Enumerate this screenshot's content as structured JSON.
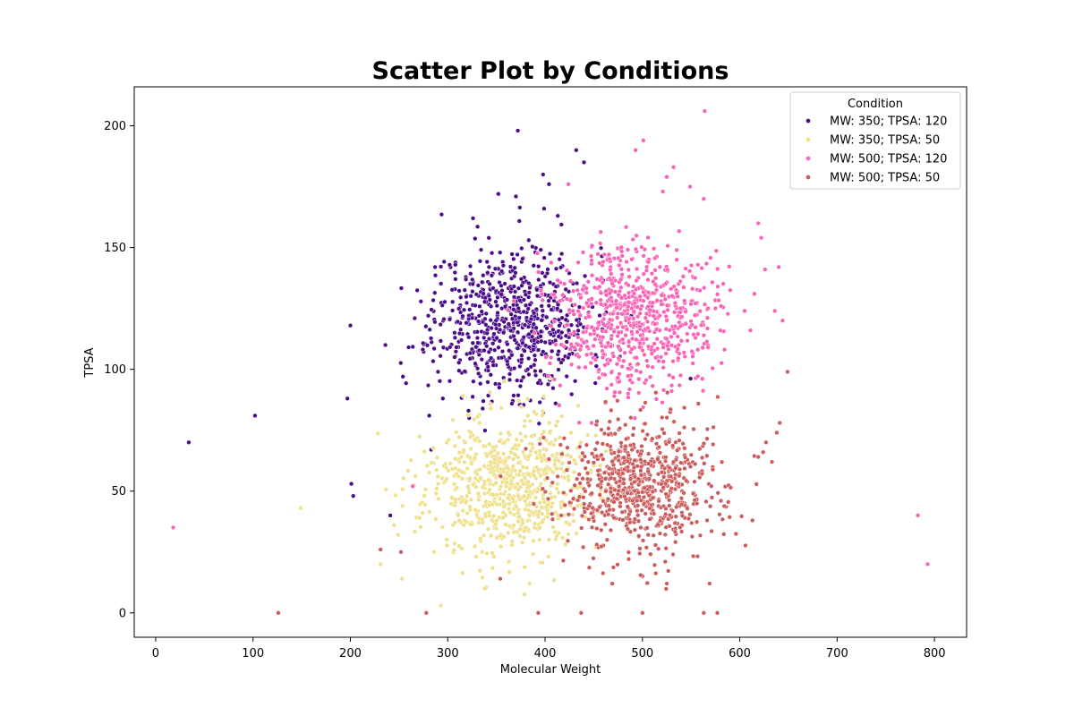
{
  "chart_data": {
    "type": "scatter",
    "title": "Scatter Plot by Conditions",
    "xlabel": "Molecular Weight",
    "ylabel": "TPSA",
    "xlim": [
      -22,
      833
    ],
    "ylim": [
      -10,
      216
    ],
    "xticks": [
      0,
      100,
      200,
      300,
      400,
      500,
      600,
      700,
      800
    ],
    "yticks": [
      0,
      50,
      100,
      150,
      200
    ],
    "grid": false,
    "legend": {
      "title": "Condition",
      "position": "top-right"
    },
    "series": [
      {
        "name": "MW: 350; TPSA: 120",
        "color": "#4b0c8a",
        "center": [
          365,
          120
        ],
        "spread": [
          40,
          15
        ],
        "n": 700,
        "seed": 11,
        "points": [
          [
            372,
            198
          ],
          [
            432,
            190
          ],
          [
            440,
            185
          ],
          [
            398,
            180
          ],
          [
            404,
            176
          ],
          [
            352,
            172
          ],
          [
            370,
            171
          ],
          [
            399,
            166
          ],
          [
            326,
            162
          ],
          [
            413,
            163
          ],
          [
            34,
            70
          ],
          [
            102,
            81
          ],
          [
            197,
            88
          ],
          [
            200,
            118
          ],
          [
            201,
            53
          ],
          [
            203,
            48
          ],
          [
            236,
            110
          ],
          [
            241,
            40
          ],
          [
            254,
            97
          ],
          [
            287,
            142
          ],
          [
            280,
            122
          ],
          [
            283,
            67
          ],
          [
            281,
            81
          ],
          [
            295,
            88
          ],
          [
            290,
            99
          ],
          [
            307,
            105
          ],
          [
            322,
            80
          ]
        ]
      },
      {
        "name": "MW: 350; TPSA: 50",
        "color": "#efe08c",
        "center": [
          360,
          52
        ],
        "spread": [
          42,
          14
        ],
        "n": 700,
        "seed": 23,
        "points": [
          [
            149,
            43
          ],
          [
            231,
            20
          ],
          [
            253,
            14
          ],
          [
            245,
            36
          ],
          [
            249,
            32
          ],
          [
            271,
            39
          ],
          [
            286,
            25
          ],
          [
            293,
            3
          ],
          [
            338,
            10
          ],
          [
            384,
            12
          ],
          [
            301,
            71
          ],
          [
            444,
            73
          ],
          [
            452,
            27
          ]
        ]
      },
      {
        "name": "MW: 500; TPSA: 120",
        "color": "#fb62b5",
        "center": [
          492,
          122
        ],
        "spread": [
          40,
          15
        ],
        "n": 700,
        "seed": 37,
        "points": [
          [
            564,
            206
          ],
          [
            501,
            194
          ],
          [
            493,
            190
          ],
          [
            532,
            183
          ],
          [
            525,
            179
          ],
          [
            549,
            175
          ],
          [
            521,
            173
          ],
          [
            563,
            170
          ],
          [
            424,
            176
          ],
          [
            18,
            35
          ],
          [
            264,
            52
          ],
          [
            783,
            40
          ],
          [
            793,
            20
          ],
          [
            636,
            124
          ],
          [
            640,
            142
          ],
          [
            644,
            120
          ],
          [
            622,
            154
          ],
          [
            619,
            160
          ],
          [
            626,
            141
          ],
          [
            615,
            131
          ],
          [
            611,
            116
          ],
          [
            605,
            124
          ]
        ]
      },
      {
        "name": "MW: 500; TPSA: 50",
        "color": "#cc5c5c",
        "center": [
          500,
          52
        ],
        "spread": [
          42,
          14
        ],
        "n": 700,
        "seed": 53,
        "points": [
          [
            126,
            0
          ],
          [
            278,
            0
          ],
          [
            393,
            0
          ],
          [
            437,
            0
          ],
          [
            500,
            0
          ],
          [
            563,
            0
          ],
          [
            577,
            0
          ],
          [
            231,
            26
          ],
          [
            252,
            25
          ],
          [
            354,
            14
          ],
          [
            469,
            12
          ],
          [
            525,
            12
          ],
          [
            569,
            12
          ],
          [
            613,
            38
          ],
          [
            627,
            70
          ],
          [
            638,
            74
          ],
          [
            641,
            78
          ],
          [
            649,
            99
          ],
          [
            633,
            62
          ],
          [
            624,
            66
          ],
          [
            619,
            64
          ]
        ]
      }
    ]
  }
}
